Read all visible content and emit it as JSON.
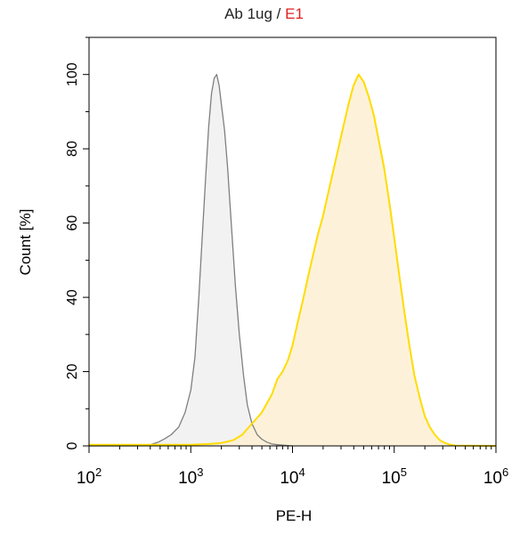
{
  "chart_data": {
    "type": "area",
    "title": "Ab 1ug",
    "title_separator": " / ",
    "title_sample": "E1",
    "xlabel": "PE-H",
    "ylabel": "Count [%]",
    "x_scale": "log",
    "xlim": [
      100,
      1000000
    ],
    "ylim": [
      0,
      110
    ],
    "x_ticks": [
      {
        "base": "10",
        "exp": "2",
        "value": 100
      },
      {
        "base": "10",
        "exp": "3",
        "value": 1000
      },
      {
        "base": "10",
        "exp": "4",
        "value": 10000
      },
      {
        "base": "10",
        "exp": "5",
        "value": 100000
      },
      {
        "base": "10",
        "exp": "6",
        "value": 1000000
      }
    ],
    "y_ticks": [
      "0",
      "20",
      "40",
      "60",
      "80",
      "100"
    ],
    "y_tick_values": [
      0,
      20,
      40,
      60,
      80,
      100
    ],
    "grid": false,
    "legend": "none",
    "series": [
      {
        "role": "control",
        "line_color": "#7f7f7f",
        "fill_color": "#f2f2f2",
        "x": [
          100,
          300,
          400,
          480,
          560,
          640,
          760,
          880,
          1000,
          1100,
          1200,
          1300,
          1400,
          1500,
          1600,
          1700,
          1800,
          1900,
          2000,
          2150,
          2300,
          2500,
          2750,
          3000,
          3300,
          3600,
          4000,
          4500,
          5000,
          5600,
          6300,
          7100,
          8000,
          9000,
          10000
        ],
        "y": [
          0,
          0,
          0.3,
          1,
          2,
          3,
          5,
          9,
          15,
          24,
          40,
          57,
          72,
          86,
          95,
          99,
          100,
          97,
          92,
          85,
          75,
          60,
          43,
          30,
          19,
          11,
          6,
          3,
          1.8,
          1,
          0.5,
          0.3,
          0.2,
          0.1,
          0
        ]
      },
      {
        "role": "sample",
        "line_color": "#ffdc00",
        "fill_color": "#fdf0d2",
        "x": [
          100,
          1000,
          1500,
          2000,
          2600,
          3200,
          4000,
          5000,
          6300,
          7100,
          8000,
          9000,
          10000,
          11200,
          12600,
          14100,
          15800,
          17800,
          20000,
          22400,
          25100,
          28200,
          31600,
          35500,
          39800,
          44700,
          50100,
          56200,
          63100,
          70800,
          79400,
          89100,
          100000,
          112000,
          126000,
          141000,
          158000,
          178000,
          200000,
          224000,
          251000,
          282000,
          316000,
          355000,
          400000,
          1000000
        ],
        "y": [
          0.3,
          0.3,
          0.5,
          0.8,
          1.5,
          3,
          6,
          9,
          14,
          18,
          20,
          23,
          27,
          33,
          39,
          45,
          51,
          57,
          62,
          68,
          74,
          80,
          86,
          92,
          97,
          100,
          98,
          94,
          89,
          82,
          75,
          66,
          56,
          46,
          36,
          27,
          19,
          13,
          8,
          5,
          3,
          1.5,
          0.8,
          0.3,
          0.1,
          0
        ]
      }
    ]
  }
}
